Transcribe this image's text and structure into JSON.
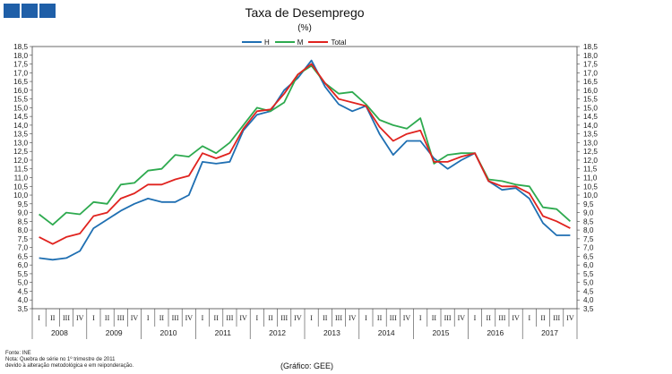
{
  "header": {
    "title": "Taxa de Desemprego",
    "subtitle": "(%)",
    "brand_color": "#1f5fa8"
  },
  "footer": {
    "source": "Fonte: INE",
    "note_line1": "Nota: Quebra de série no 1º trimestre de 2011",
    "note_line2": "devido à alteração metodológica e em reiponderação.",
    "credit": "(Gráfico: GEE)"
  },
  "chart_data": {
    "type": "line",
    "title": "Taxa de Desemprego",
    "subtitle": "(%)",
    "ylim": [
      3.5,
      18.5
    ],
    "ytick_step": 0.5,
    "quarter_labels": [
      "I",
      "II",
      "III",
      "IV"
    ],
    "years": [
      "2008",
      "2009",
      "2010",
      "2011",
      "2012",
      "2013",
      "2014",
      "2015",
      "2016",
      "2017"
    ],
    "legend_position": "top-center",
    "series": [
      {
        "name": "H",
        "color": "#1f6fb2",
        "values": [
          6.4,
          6.3,
          6.4,
          6.8,
          8.1,
          8.6,
          9.1,
          9.5,
          9.8,
          9.6,
          9.6,
          10.0,
          11.9,
          11.8,
          11.9,
          13.7,
          14.6,
          14.8,
          16.0,
          16.7,
          17.7,
          16.2,
          15.2,
          14.8,
          15.1,
          13.5,
          12.3,
          13.1,
          13.1,
          12.1,
          11.5,
          12.0,
          12.4,
          10.8,
          10.3,
          10.4,
          9.8,
          8.4,
          7.7,
          7.7
        ]
      },
      {
        "name": "M",
        "color": "#2eaa4f",
        "values": [
          8.9,
          8.3,
          9.0,
          8.9,
          9.6,
          9.5,
          10.6,
          10.7,
          11.4,
          11.5,
          12.3,
          12.2,
          12.8,
          12.4,
          13.0,
          14.0,
          15.0,
          14.8,
          15.3,
          16.9,
          17.4,
          16.4,
          15.8,
          15.9,
          15.2,
          14.3,
          14.0,
          13.8,
          14.4,
          11.8,
          12.3,
          12.4,
          12.4,
          10.9,
          10.8,
          10.6,
          10.5,
          9.3,
          9.2,
          8.5
        ]
      },
      {
        "name": "Total",
        "color": "#e0231f",
        "values": [
          7.6,
          7.2,
          7.6,
          7.8,
          8.8,
          9.0,
          9.8,
          10.1,
          10.6,
          10.6,
          10.9,
          11.1,
          12.4,
          12.1,
          12.4,
          13.8,
          14.8,
          14.9,
          15.8,
          16.9,
          17.5,
          16.4,
          15.5,
          15.3,
          15.1,
          13.9,
          13.1,
          13.5,
          13.7,
          11.9,
          11.9,
          12.2,
          12.4,
          10.8,
          10.5,
          10.5,
          10.1,
          8.8,
          8.5,
          8.1
        ]
      }
    ]
  }
}
